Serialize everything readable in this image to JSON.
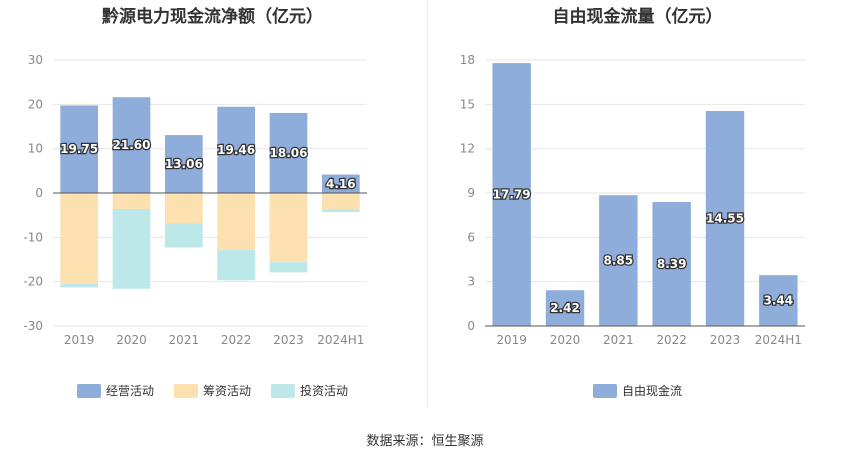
{
  "source_text": "数据来源：恒生聚源",
  "chart_data": [
    {
      "type": "bar",
      "stacked": true,
      "title": "黔源电力现金流净额（亿元）",
      "categories": [
        "2019",
        "2020",
        "2021",
        "2022",
        "2023",
        "2024H1"
      ],
      "ylim": [
        -30,
        30
      ],
      "yticks": [
        30,
        20,
        10,
        0,
        -10,
        -20,
        -30
      ],
      "grid": true,
      "legend_position": "bottom",
      "series": [
        {
          "name": "经营活动",
          "color": "#8eadda",
          "values": [
            19.75,
            21.6,
            13.06,
            19.46,
            18.06,
            4.16
          ],
          "labels": [
            "19.75",
            "21.60",
            "13.06",
            "19.46",
            "18.06",
            "4.16"
          ]
        },
        {
          "name": "筹资活动",
          "color": "#fde0b0",
          "values": [
            -20.5,
            -3.6,
            -6.8,
            -12.8,
            -15.6,
            -3.7
          ]
        },
        {
          "name": "投资活动",
          "color": "#bde8ea",
          "values": [
            -0.8,
            -18.0,
            -5.5,
            -6.9,
            -2.3,
            -0.6
          ]
        }
      ]
    },
    {
      "type": "bar",
      "title": "自由现金流量（亿元）",
      "categories": [
        "2019",
        "2020",
        "2021",
        "2022",
        "2023",
        "2024H1"
      ],
      "ylim": [
        0,
        18
      ],
      "yticks": [
        18,
        15,
        12,
        9,
        6,
        3,
        0
      ],
      "grid": true,
      "legend_position": "bottom",
      "series": [
        {
          "name": "自由现金流",
          "color": "#8eadda",
          "values": [
            17.79,
            2.42,
            8.85,
            8.39,
            14.55,
            3.44
          ],
          "labels": [
            "17.79",
            "2.42",
            "8.85",
            "8.39",
            "14.55",
            "3.44"
          ]
        }
      ]
    }
  ]
}
